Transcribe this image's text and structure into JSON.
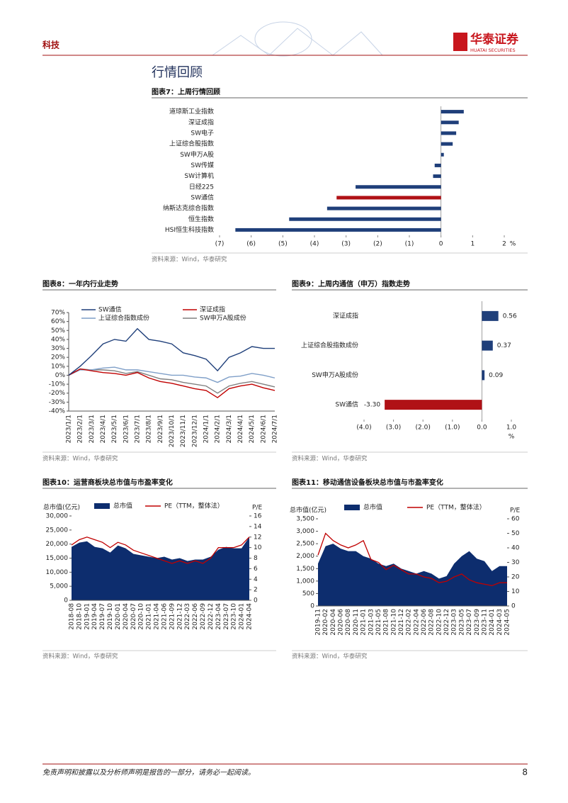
{
  "header": {
    "category": "科技",
    "brand": "华泰证券",
    "brand_en": "HUATAI SECURITIES"
  },
  "section_title": "行情回顾",
  "chart_data": [
    {
      "type": "hbar",
      "title": "图表7：上周行情回顾",
      "source": "资料来源：Wind，华泰研究",
      "categories": [
        "道琼斯工业指数",
        "深证成指",
        "SW电子",
        "上证综合股指数",
        "SW申万A股",
        "SW传媒",
        "SW计算机",
        "日经225",
        "SW通信",
        "纳斯达克综合指数",
        "恒生指数",
        "HSI恒生科技指数"
      ],
      "values": [
        0.72,
        0.56,
        0.48,
        0.37,
        0.09,
        -0.2,
        -0.25,
        -2.7,
        -3.3,
        -3.6,
        -4.8,
        -6.5
      ],
      "colors": [
        "#1f3f7a",
        "#1f3f7a",
        "#1f3f7a",
        "#1f3f7a",
        "#1f3f7a",
        "#1f3f7a",
        "#1f3f7a",
        "#1f3f7a",
        "#b01116",
        "#1f3f7a",
        "#1f3f7a",
        "#1f3f7a"
      ],
      "xlim": [
        -7,
        2
      ],
      "xticks": [
        {
          "value": -7,
          "label": "(7)"
        },
        {
          "value": -6,
          "label": "(6)"
        },
        {
          "value": -5,
          "label": "(5)"
        },
        {
          "value": -4,
          "label": "(4)"
        },
        {
          "value": -3,
          "label": "(3)"
        },
        {
          "value": -2,
          "label": "(2)"
        },
        {
          "value": -1,
          "label": "(1)"
        },
        0,
        1,
        2
      ],
      "xlabel": "%"
    },
    {
      "type": "line",
      "title": "图表8：一年内行业走势",
      "source": "资料来源：Wind，华泰研究",
      "categories": [
        "2023/1/1",
        "2023/2/1",
        "2023/3/1",
        "2023/4/1",
        "2023/5/1",
        "2023/6/1",
        "2023/7/1",
        "2023/8/1",
        "2023/9/1",
        "2023/10/1",
        "2023/11/1",
        "2023/12/1",
        "2024/1/1",
        "2024/2/1",
        "2024/3/1",
        "2024/4/1",
        "2024/5/1",
        "2024/6/1",
        "2024/7/1"
      ],
      "series": [
        {
          "name": "SW通信",
          "color": "#1f3f7a",
          "values": [
            0,
            10,
            22,
            35,
            40,
            38,
            52,
            40,
            38,
            35,
            25,
            22,
            18,
            5,
            20,
            25,
            32,
            30,
            30
          ]
        },
        {
          "name": "深证成指",
          "color": "#c00000",
          "values": [
            0,
            7,
            5,
            3,
            2,
            0,
            3,
            -3,
            -7,
            -9,
            -12,
            -15,
            -17,
            -25,
            -15,
            -12,
            -10,
            -14,
            -17
          ]
        },
        {
          "name": "上证综合指数成份",
          "color": "#7f9fc8",
          "values": [
            0,
            6,
            6,
            8,
            9,
            6,
            6,
            4,
            2,
            0,
            0,
            -2,
            -3,
            -8,
            -2,
            -1,
            2,
            0,
            -3
          ]
        },
        {
          "name": "SW申万A股成份",
          "color": "#808080",
          "values": [
            0,
            7,
            6,
            6,
            5,
            2,
            4,
            0,
            -4,
            -5,
            -8,
            -10,
            -12,
            -20,
            -12,
            -9,
            -7,
            -10,
            -13
          ]
        }
      ],
      "ylim": [
        -40,
        70
      ],
      "yticks": [
        {
          "value": -40,
          "label": "-40%"
        },
        {
          "value": -30,
          "label": "-30%"
        },
        {
          "value": -20,
          "label": "-20%"
        },
        {
          "value": -10,
          "label": "-10%"
        },
        {
          "value": 0,
          "label": "0%"
        },
        {
          "value": 10,
          "label": "10%"
        },
        {
          "value": 20,
          "label": "20%"
        },
        {
          "value": 30,
          "label": "30%"
        },
        {
          "value": 40,
          "label": "40%"
        },
        {
          "value": 50,
          "label": "50%"
        },
        {
          "value": 60,
          "label": "60%"
        },
        {
          "value": 70,
          "label": "70%"
        }
      ]
    },
    {
      "type": "hbar",
      "title": "图表9：上周内通信（申万）指数走势",
      "source": "资料来源：Wind，华泰研究",
      "categories": [
        "深证成指",
        "上证综合股指数成份",
        "SW申万A股成份",
        "SW通信"
      ],
      "values": [
        0.56,
        0.37,
        0.09,
        -3.3
      ],
      "value_labels": [
        "0.56",
        "0.37",
        "0.09",
        "-3.30"
      ],
      "colors": [
        "#1f3f7a",
        "#1f3f7a",
        "#1f3f7a",
        "#b01116"
      ],
      "xlim": [
        -4,
        1
      ],
      "xticks": [
        {
          "value": -4,
          "label": "(4.0)"
        },
        {
          "value": -3,
          "label": "(3.0)"
        },
        {
          "value": -2,
          "label": "(2.0)"
        },
        {
          "value": -1,
          "label": "(1.0)"
        },
        {
          "value": 0,
          "label": "0.0"
        },
        {
          "value": 1,
          "label": "1.0"
        }
      ],
      "xlabel": "%"
    },
    {
      "type": "combo",
      "title": "图表10：运营商板块总市值与市盈率变化",
      "source": "资料来源：Wind，华泰研究",
      "ylabel": "总市值(亿元)",
      "y2label": "P/E",
      "categories": [
        "2018-08",
        "2018-10",
        "2019-01",
        "2019-04",
        "2019-07",
        "2019-10",
        "2020-01",
        "2020-04",
        "2020-07",
        "2020-10",
        "2021-01",
        "2021-04",
        "2021-06",
        "2021-09",
        "2021-12",
        "2022-03",
        "2022-06",
        "2022-09",
        "2022-12",
        "2023-04",
        "2023-07",
        "2023-10",
        "2024-01",
        "2024-04"
      ],
      "series": [
        {
          "name": "总市值",
          "color": "#0d2d6e",
          "values": [
            19000,
            20500,
            21000,
            19000,
            18500,
            17000,
            19500,
            18500,
            16500,
            16000,
            15500,
            15000,
            15500,
            14500,
            15000,
            14000,
            14500,
            14500,
            15500,
            18000,
            19000,
            18500,
            18500,
            22500
          ]
        },
        {
          "name": "PE（TTM，整体法）",
          "color": "#c00000",
          "axis": "y2",
          "values": [
            10.5,
            11.5,
            12,
            11.5,
            11,
            10,
            11,
            10.5,
            9.5,
            9,
            8.5,
            8,
            7.5,
            7,
            7.5,
            7,
            7.5,
            7,
            8,
            10,
            10,
            10,
            10.5,
            12
          ]
        }
      ],
      "ylim": [
        0,
        30000
      ],
      "yticks": [
        0,
        {
          "value": 5000,
          "label": "5,000"
        },
        {
          "value": 10000,
          "label": "10,000"
        },
        {
          "value": 15000,
          "label": "15,000"
        },
        {
          "value": 20000,
          "label": "20,000"
        },
        {
          "value": 25000,
          "label": "25,000"
        },
        {
          "value": 30000,
          "label": "30,000"
        }
      ],
      "y2lim": [
        0,
        16
      ],
      "y2ticks": [
        0,
        2,
        4,
        6,
        8,
        10,
        12,
        14,
        16
      ]
    },
    {
      "type": "combo",
      "title": "图表11：移动通信设备板块总市值与市盈率变化",
      "source": "资料来源：Wind，华泰研究",
      "ylabel": "总市值(亿元)",
      "y2label": "P/E",
      "categories": [
        "2019-11",
        "2020-02",
        "2020-04",
        "2020-06",
        "2020-08",
        "2020-11",
        "2021-01",
        "2021-03",
        "2021-05",
        "2021-08",
        "2021-10",
        "2021-12",
        "2022-02",
        "2022-04",
        "2022-06",
        "2022-08",
        "2022-10",
        "2022-12",
        "2023-03",
        "2023-05",
        "2023-07",
        "2023-09",
        "2023-11",
        "2024-01",
        "2024-03",
        "2024-05"
      ],
      "series": [
        {
          "name": "总市值",
          "color": "#0d2d6e",
          "values": [
            1700,
            2400,
            2500,
            2300,
            2200,
            2200,
            2000,
            1900,
            1700,
            1600,
            1700,
            1500,
            1400,
            1300,
            1400,
            1300,
            1100,
            1200,
            1700,
            2000,
            2200,
            1900,
            1800,
            1400,
            1600,
            1600
          ]
        },
        {
          "name": "PE（TTM，整体法）",
          "color": "#c00000",
          "axis": "y2",
          "values": [
            35,
            50,
            45,
            42,
            40,
            42,
            45,
            32,
            30,
            25,
            28,
            25,
            22,
            22,
            20,
            19,
            16,
            17,
            20,
            22,
            18,
            16,
            15,
            14,
            16,
            16
          ]
        }
      ],
      "ylim": [
        0,
        3500
      ],
      "yticks": [
        0,
        500,
        {
          "value": 1000,
          "label": "1,000"
        },
        {
          "value": 1500,
          "label": "1,500"
        },
        {
          "value": 2000,
          "label": "2,000"
        },
        {
          "value": 2500,
          "label": "2,500"
        },
        {
          "value": 3000,
          "label": "3,000"
        },
        {
          "value": 3500,
          "label": "3,500"
        }
      ],
      "y2lim": [
        0,
        60
      ],
      "y2ticks": [
        0,
        10,
        20,
        30,
        40,
        50,
        60
      ]
    }
  ],
  "footer": {
    "disclaimer": "免责声明和披露以及分析师声明是报告的一部分，请务必一起阅读。",
    "page": "8"
  }
}
